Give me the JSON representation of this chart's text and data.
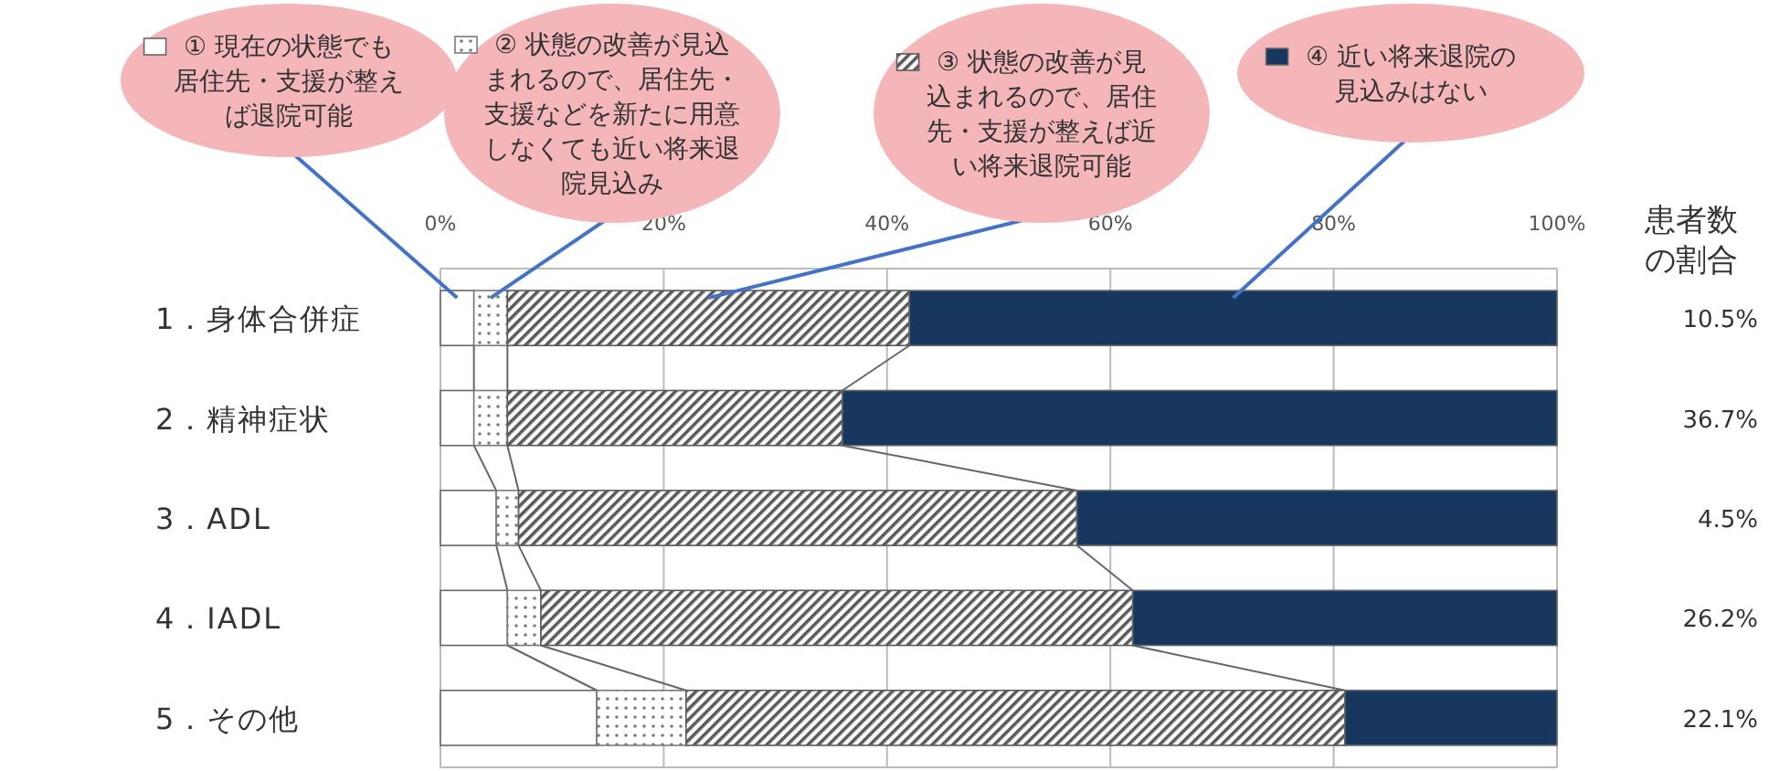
{
  "chart_data": {
    "type": "bar",
    "orientation": "horizontal",
    "stacked": true,
    "categories": [
      "1．身体合併症",
      "2．精神症状",
      "3．ADL",
      "4．IADL",
      "5．その他"
    ],
    "series": [
      {
        "name": "① 現在の状態でも居住先・支援が整えば退院可能",
        "color": "#ffffff",
        "values": [
          3,
          3,
          5,
          6,
          14
        ]
      },
      {
        "name": "② 状態の改善が見込まれるので、居住先・支援などを新たに用意しなくても近い将来退院見込み",
        "color": "#7a7a7a",
        "values": [
          3,
          3,
          2,
          3,
          8
        ]
      },
      {
        "name": "③ 状態の改善が見込まれるので、居住先・支援が整えば近い将来退院可能",
        "color": "#5a5a5a",
        "values": [
          36,
          30,
          50,
          53,
          59
        ]
      },
      {
        "name": "④ 近い将来退院の見込みはない",
        "color": "#17375e",
        "values": [
          58,
          64,
          43,
          38,
          19
        ]
      }
    ],
    "xlim": [
      0,
      100
    ],
    "xticks": [
      {
        "value": 0,
        "label": "0%"
      },
      {
        "value": 20,
        "label": "20%"
      },
      {
        "value": 40,
        "label": "40%"
      },
      {
        "value": 60,
        "label": "60%"
      },
      {
        "value": 80,
        "label": "80%"
      },
      {
        "value": 100,
        "label": "100%"
      }
    ],
    "grid": "x",
    "legend": "top",
    "annotations": [
      "患者数の割合",
      "10.5%",
      "36.7%",
      "4.5%",
      "26.2%",
      "22.1%"
    ]
  }
}
